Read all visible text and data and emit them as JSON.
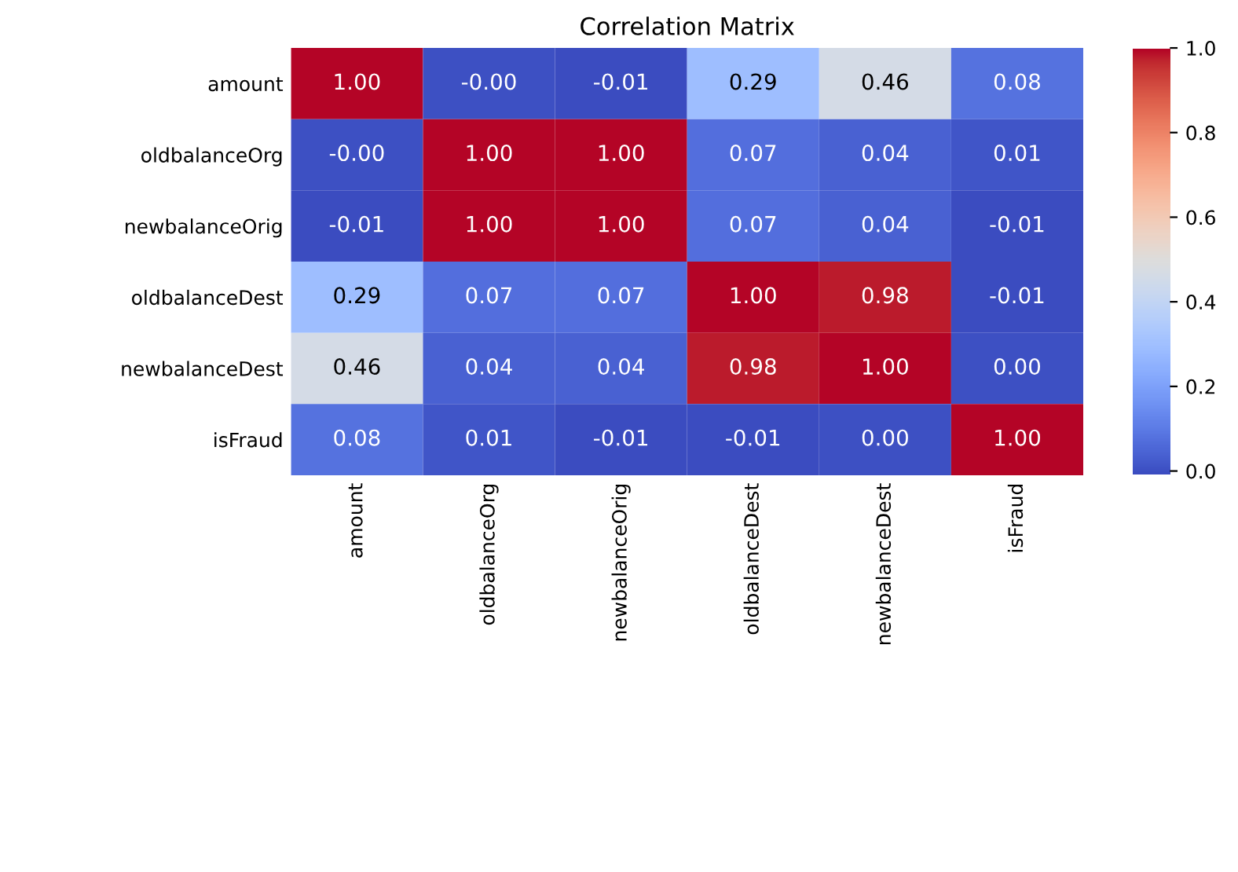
{
  "chart_data": {
    "type": "heatmap",
    "title": "Correlation Matrix",
    "categories": [
      "amount",
      "oldbalanceOrg",
      "newbalanceOrig",
      "oldbalanceDest",
      "newbalanceDest",
      "isFraud"
    ],
    "y_categories": [
      "amount",
      "oldbalanceOrg",
      "newbalanceOrig",
      "oldbalanceDest",
      "newbalanceDest",
      "isFraud"
    ],
    "cells": [
      [
        1.0,
        -0.0,
        -0.01,
        0.29,
        0.46,
        0.08
      ],
      [
        -0.0,
        1.0,
        1.0,
        0.07,
        0.04,
        0.01
      ],
      [
        -0.01,
        1.0,
        1.0,
        0.07,
        0.04,
        -0.01
      ],
      [
        0.29,
        0.07,
        0.07,
        1.0,
        0.98,
        -0.01
      ],
      [
        0.46,
        0.04,
        0.04,
        0.98,
        1.0,
        0.0
      ],
      [
        0.08,
        0.01,
        -0.01,
        -0.01,
        0.0,
        1.0
      ]
    ],
    "cell_labels": [
      [
        "1.00",
        "-0.00",
        "-0.01",
        "0.29",
        "0.46",
        "0.08"
      ],
      [
        "-0.00",
        "1.00",
        "1.00",
        "0.07",
        "0.04",
        "0.01"
      ],
      [
        "-0.01",
        "1.00",
        "1.00",
        "0.07",
        "0.04",
        "-0.01"
      ],
      [
        "0.29",
        "0.07",
        "0.07",
        "1.00",
        "0.98",
        "-0.01"
      ],
      [
        "0.46",
        "0.04",
        "0.04",
        "0.98",
        "1.00",
        "0.00"
      ],
      [
        "0.08",
        "0.01",
        "-0.01",
        "-0.01",
        "0.00",
        "1.00"
      ]
    ],
    "clim": [
      -0.01,
      1.0
    ],
    "cticks": [
      {
        "value": 0,
        "label": "0.0"
      },
      {
        "value": 0.2,
        "label": "0.2"
      },
      {
        "value": 0.4,
        "label": "0.4"
      },
      {
        "value": 0.6,
        "label": "0.6"
      },
      {
        "value": 0.8,
        "label": "0.8"
      },
      {
        "value": 1.0,
        "label": "1.0"
      }
    ],
    "grid": false
  }
}
